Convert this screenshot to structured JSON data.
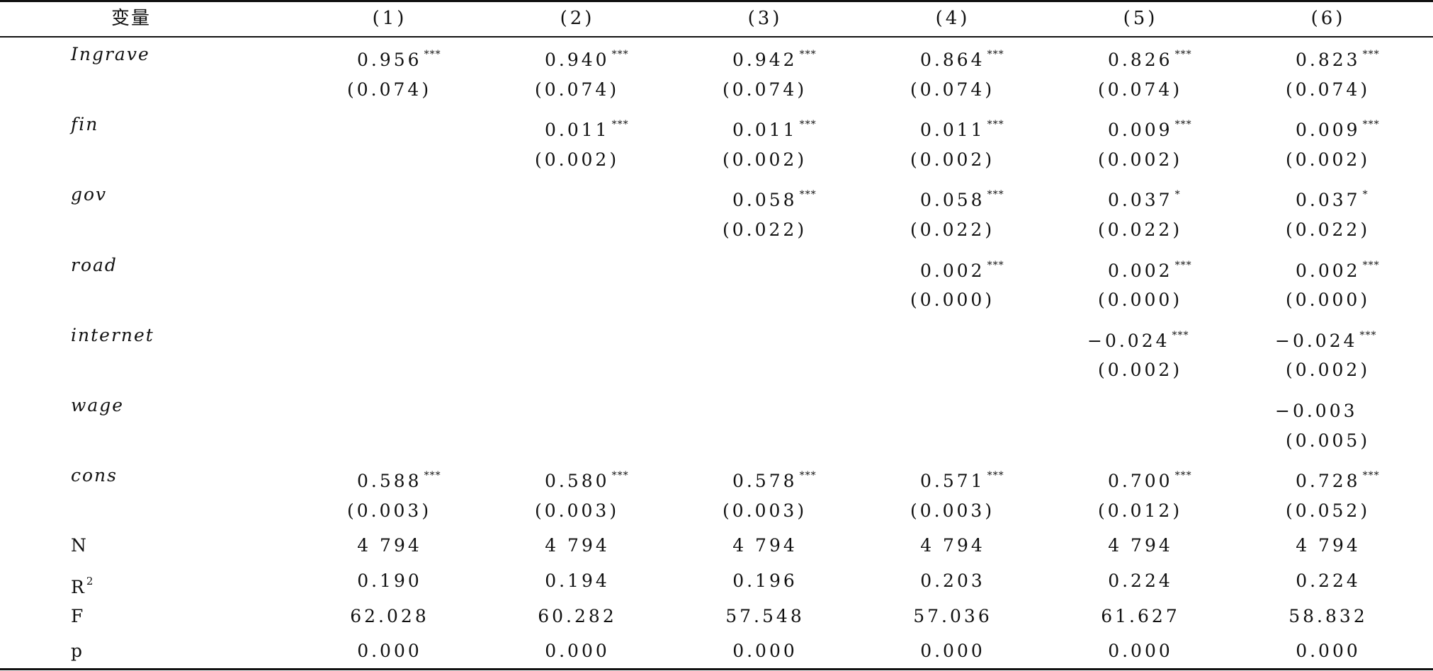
{
  "header": {
    "variable_label": "变量",
    "columns": [
      "(1)",
      "(2)",
      "(3)",
      "(4)",
      "(5)",
      "(6)"
    ]
  },
  "variables": [
    {
      "name": "Ingrave",
      "coefs": [
        "0.956",
        "0.940",
        "0.942",
        "0.864",
        "0.826",
        "0.823"
      ],
      "stars": [
        "***",
        "***",
        "***",
        "***",
        "***",
        "***"
      ],
      "se": [
        "(0.074)",
        "(0.074)",
        "(0.074)",
        "(0.074)",
        "(0.074)",
        "(0.074)"
      ]
    },
    {
      "name": "fin",
      "coefs": [
        "",
        "0.011",
        "0.011",
        "0.011",
        "0.009",
        "0.009"
      ],
      "stars": [
        "",
        "***",
        "***",
        "***",
        "***",
        "***"
      ],
      "se": [
        "",
        "(0.002)",
        "(0.002)",
        "(0.002)",
        "(0.002)",
        "(0.002)"
      ]
    },
    {
      "name": "gov",
      "coefs": [
        "",
        "",
        "0.058",
        "0.058",
        "0.037",
        "0.037"
      ],
      "stars": [
        "",
        "",
        "***",
        "***",
        "*",
        "*"
      ],
      "se": [
        "",
        "",
        "(0.022)",
        "(0.022)",
        "(0.022)",
        "(0.022)"
      ]
    },
    {
      "name": "road",
      "coefs": [
        "",
        "",
        "",
        "0.002",
        "0.002",
        "0.002"
      ],
      "stars": [
        "",
        "",
        "",
        "***",
        "***",
        "***"
      ],
      "se": [
        "",
        "",
        "",
        "(0.000)",
        "(0.000)",
        "(0.000)"
      ]
    },
    {
      "name": "internet",
      "coefs": [
        "",
        "",
        "",
        "",
        "−0.024",
        "−0.024"
      ],
      "stars": [
        "",
        "",
        "",
        "",
        "***",
        "***"
      ],
      "se": [
        "",
        "",
        "",
        "",
        "(0.002)",
        "(0.002)"
      ]
    },
    {
      "name": "wage",
      "coefs": [
        "",
        "",
        "",
        "",
        "",
        "−0.003"
      ],
      "stars": [
        "",
        "",
        "",
        "",
        "",
        ""
      ],
      "se": [
        "",
        "",
        "",
        "",
        "",
        "(0.005)"
      ]
    },
    {
      "name": "cons",
      "coefs": [
        "0.588",
        "0.580",
        "0.578",
        "0.571",
        "0.700",
        "0.728"
      ],
      "stars": [
        "***",
        "***",
        "***",
        "***",
        "***",
        "***"
      ],
      "se": [
        "(0.003)",
        "(0.003)",
        "(0.003)",
        "(0.003)",
        "(0.012)",
        "(0.052)"
      ]
    }
  ],
  "stats": [
    {
      "name": "N",
      "sup": "",
      "values": [
        "4 794",
        "4 794",
        "4 794",
        "4 794",
        "4 794",
        "4 794"
      ]
    },
    {
      "name": "R",
      "sup": "2",
      "values": [
        "0.190",
        "0.194",
        "0.196",
        "0.203",
        "0.224",
        "0.224"
      ]
    },
    {
      "name": "F",
      "sup": "",
      "values": [
        "62.028",
        "60.282",
        "57.548",
        "57.036",
        "61.627",
        "58.832"
      ]
    },
    {
      "name": "p",
      "sup": "",
      "values": [
        "0.000",
        "0.000",
        "0.000",
        "0.000",
        "0.000",
        "0.000"
      ]
    }
  ]
}
